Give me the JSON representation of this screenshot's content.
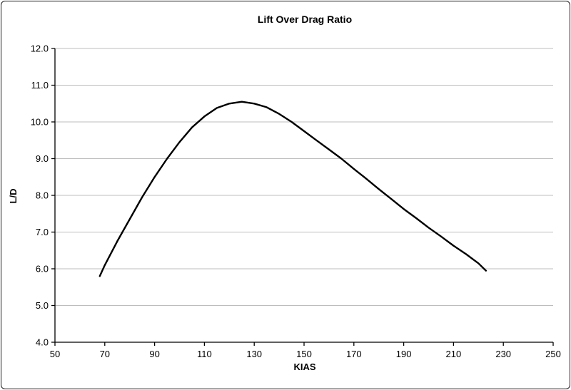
{
  "chart_data": {
    "type": "line",
    "title": "Lift Over Drag Ratio",
    "xlabel": "KIAS",
    "ylabel": "L/D",
    "xlim": [
      50,
      250
    ],
    "ylim": [
      4.0,
      12.0
    ],
    "x_ticks": [
      50,
      70,
      90,
      110,
      130,
      150,
      170,
      190,
      210,
      230,
      250
    ],
    "y_ticks": [
      4.0,
      5.0,
      6.0,
      7.0,
      8.0,
      9.0,
      10.0,
      11.0,
      12.0
    ],
    "grid": "horizontal",
    "legend": "none",
    "series": [
      {
        "name": "L/D",
        "x": [
          68,
          70,
          75,
          80,
          85,
          90,
          95,
          100,
          105,
          110,
          115,
          120,
          125,
          130,
          135,
          140,
          145,
          150,
          155,
          160,
          165,
          170,
          175,
          180,
          185,
          190,
          195,
          200,
          205,
          210,
          215,
          220,
          223
        ],
        "y": [
          5.8,
          6.1,
          6.75,
          7.35,
          7.95,
          8.5,
          9.0,
          9.45,
          9.85,
          10.15,
          10.38,
          10.5,
          10.55,
          10.5,
          10.4,
          10.22,
          10.0,
          9.75,
          9.5,
          9.25,
          9.0,
          8.72,
          8.45,
          8.17,
          7.9,
          7.63,
          7.38,
          7.12,
          6.88,
          6.63,
          6.4,
          6.15,
          5.95
        ]
      }
    ],
    "colors": {
      "line": "#000000",
      "grid": "#bdbdbd",
      "axis": "#000000",
      "background": "#ffffff"
    }
  }
}
